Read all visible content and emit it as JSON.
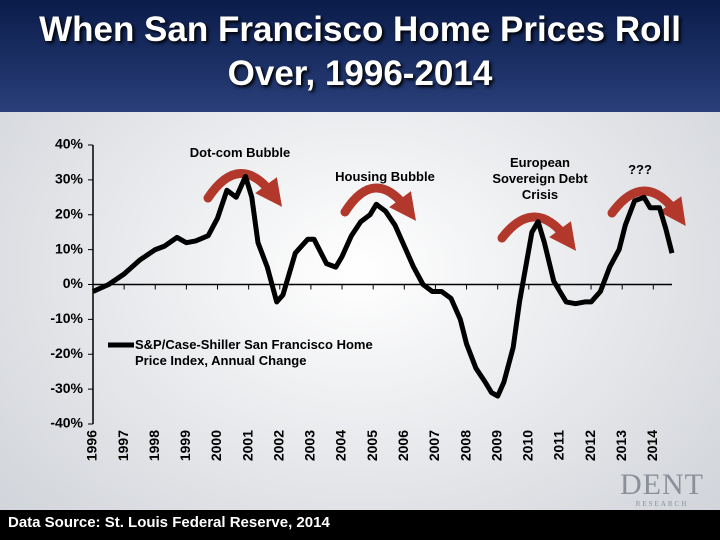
{
  "title": "When San Francisco Home Prices Roll Over, 1996-2014",
  "source": "Data Source: St. Louis Federal Reserve, 2014",
  "logo": {
    "name": "DENT",
    "tagline": "RESEARCH"
  },
  "chart_data": {
    "type": "line",
    "annotations": [
      "Dot-com Bubble",
      "Housing Bubble",
      "European Sovereign Debt Crisis",
      "???"
    ],
    "series": [
      {
        "name": "S&P/Case-Shiller San Francisco Home Price Index, Annual Change",
        "color": "#000000",
        "x": [
          1996.0,
          1996.5,
          1997.0,
          1997.5,
          1998.0,
          1998.3,
          1998.7,
          1999.0,
          1999.3,
          1999.7,
          2000.0,
          2000.3,
          2000.6,
          2000.9,
          2001.1,
          2001.3,
          2001.6,
          2001.9,
          2002.1,
          2002.5,
          2002.9,
          2003.1,
          2003.5,
          2003.8,
          2004.0,
          2004.3,
          2004.6,
          2004.9,
          2005.1,
          2005.4,
          2005.7,
          2006.0,
          2006.3,
          2006.6,
          2006.9,
          2007.2,
          2007.5,
          2007.8,
          2008.0,
          2008.3,
          2008.6,
          2008.8,
          2009.0,
          2009.2,
          2009.5,
          2009.7,
          2009.9,
          2010.1,
          2010.3,
          2010.5,
          2010.8,
          2011.0,
          2011.2,
          2011.5,
          2011.8,
          2012.0,
          2012.3,
          2012.6,
          2012.9,
          2013.1,
          2013.4,
          2013.7,
          2013.9,
          2014.2,
          2014.4,
          2014.6
        ],
        "values": [
          -2,
          0,
          3,
          7,
          10,
          11,
          13.5,
          12,
          12.5,
          14,
          19,
          27,
          25,
          31,
          25,
          12,
          5,
          -5,
          -3,
          9,
          13,
          13,
          6,
          5,
          8,
          14,
          18,
          20,
          23,
          21,
          17,
          11,
          5,
          0,
          -2,
          -2,
          -4,
          -10,
          -17,
          -24,
          -28,
          -31,
          -32,
          -28,
          -18,
          -5,
          5,
          15,
          18,
          12,
          1,
          -2,
          -5,
          -5.5,
          -5,
          -5,
          -2,
          5,
          10,
          17,
          24,
          25,
          22,
          22,
          16,
          9
        ]
      }
    ],
    "xlim": [
      1996,
      2014.6
    ],
    "xticks": [
      1996,
      1997,
      1998,
      1999,
      2000,
      2001,
      2002,
      2003,
      2004,
      2005,
      2006,
      2007,
      2008,
      2009,
      2010,
      2011,
      2012,
      2013,
      2014
    ],
    "ylim": [
      -40,
      40
    ],
    "yticks": [
      {
        "value": -40,
        "label": "-40%"
      },
      {
        "value": -30,
        "label": "-30%"
      },
      {
        "value": -20,
        "label": "-20%"
      },
      {
        "value": -10,
        "label": "-10%"
      },
      {
        "value": 0,
        "label": "0%"
      },
      {
        "value": 10,
        "label": "10%"
      },
      {
        "value": 20,
        "label": "20%"
      },
      {
        "value": 30,
        "label": "30%"
      },
      {
        "value": 40,
        "label": "40%"
      }
    ],
    "grid": false
  }
}
